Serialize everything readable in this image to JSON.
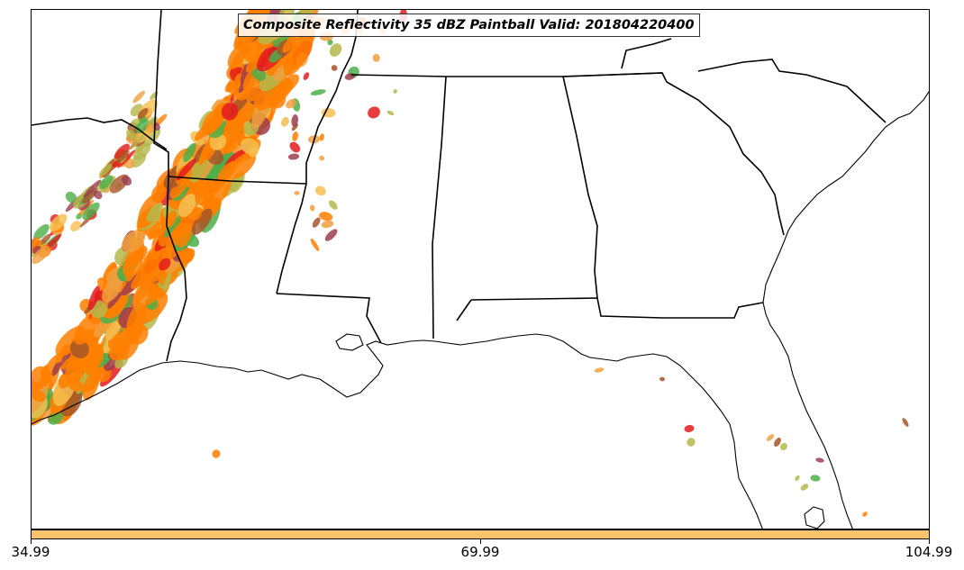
{
  "map": {
    "title": "Composite Reflectivity 35 dBZ Paintball Valid: 201804220400",
    "region": "Southeastern United States",
    "reflectivity_threshold_dbz": 35,
    "valid_time": "201804220400",
    "member_colors": [
      "#ff7f00",
      "#e41a1c",
      "#4daf4a",
      "#a65628",
      "#f0a040",
      "#b5b84a",
      "#9e3d4e",
      "#f4c050"
    ],
    "colorbar": {
      "color": "#f9c36b",
      "ticks": [
        "34.99",
        "69.99",
        "104.99"
      ]
    }
  }
}
